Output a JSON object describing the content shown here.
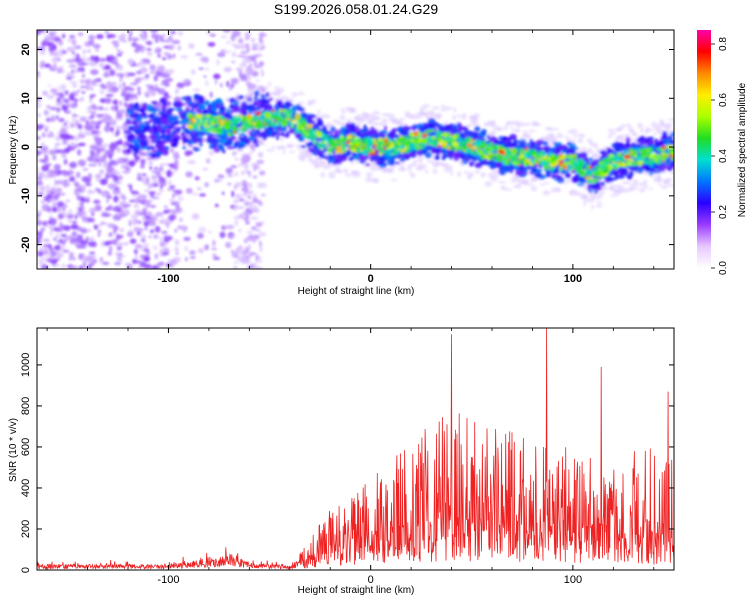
{
  "title": "S199.2026.058.01.24.G29",
  "colors": {
    "snr_line": "#ee2222",
    "axis": "#000000",
    "background": "#ffffff"
  },
  "chart_data": [
    {
      "type": "heatmap",
      "name": "spectrogram",
      "xlabel": "Height of straight line (km)",
      "ylabel": "Frequency (Hz)",
      "xlim": [
        -165,
        150
      ],
      "ylim": [
        -25,
        24
      ],
      "xticks": [
        {
          "value": -100,
          "label": "-100"
        },
        {
          "value": 0,
          "label": "0"
        },
        {
          "value": 100,
          "label": "100"
        }
      ],
      "yticks": [
        {
          "value": 20,
          "label": "20"
        },
        {
          "value": 10,
          "label": "10"
        },
        {
          "value": 0,
          "label": "0"
        },
        {
          "value": -10,
          "label": "-10"
        },
        {
          "value": -20,
          "label": "-20"
        }
      ],
      "colorbar": {
        "label": "Normalized spectral amplitude",
        "range": [
          0.0,
          0.85
        ],
        "ticks": [
          {
            "value": 0.0,
            "label": "0.0"
          },
          {
            "value": 0.2,
            "label": "0.2"
          },
          {
            "value": 0.4,
            "label": "0.4"
          },
          {
            "value": 0.6,
            "label": "0.6"
          },
          {
            "value": 0.8,
            "label": "0.8"
          }
        ],
        "stops": [
          "#ffffff",
          "#e8c8ff",
          "#9a3cff",
          "#2a00ff",
          "#0077ff",
          "#00e0d0",
          "#22dd22",
          "#aaff00",
          "#ffee00",
          "#ff8800",
          "#ff0000",
          "#ff00aa"
        ]
      },
      "ridge": {
        "description": "frequency of peak spectral amplitude versus height",
        "x": [
          -130,
          -100,
          -90,
          -80,
          -70,
          -60,
          -50,
          -40,
          -30,
          -20,
          -10,
          0,
          10,
          20,
          30,
          40,
          50,
          60,
          70,
          80,
          90,
          100,
          110,
          120,
          130,
          140,
          148
        ],
        "y": [
          3,
          4,
          5,
          5,
          4,
          5,
          6,
          6,
          3,
          0,
          1,
          0,
          0,
          1,
          2,
          1,
          0,
          -1,
          -2,
          -2,
          -3,
          -3,
          -6,
          -3,
          -2,
          -2,
          -1
        ]
      }
    },
    {
      "type": "line",
      "name": "snr",
      "xlabel": "Height of straight line (km)",
      "ylabel": "SNR (10 * v/v)",
      "xlim": [
        -165,
        150
      ],
      "ylim": [
        0,
        1180
      ],
      "xticks": [
        {
          "value": -100,
          "label": "-100"
        },
        {
          "value": 0,
          "label": "0"
        },
        {
          "value": 100,
          "label": "100"
        }
      ],
      "yticks": [
        {
          "value": 0,
          "label": "0"
        },
        {
          "value": 200,
          "label": "200"
        },
        {
          "value": 400,
          "label": "400"
        },
        {
          "value": 600,
          "label": "600"
        },
        {
          "value": 800,
          "label": "800"
        },
        {
          "value": 1000,
          "label": "1000"
        }
      ],
      "envelope": {
        "description": "approximate baseline and upper envelope of SNR vs height",
        "x": [
          -165,
          -100,
          -80,
          -70,
          -60,
          -40,
          -30,
          -20,
          0,
          20,
          40,
          60,
          80,
          100,
          120,
          140,
          150
        ],
        "base": [
          20,
          20,
          40,
          60,
          25,
          15,
          60,
          120,
          180,
          220,
          250,
          240,
          220,
          230,
          200,
          180,
          150
        ],
        "peak": [
          40,
          45,
          90,
          110,
          50,
          30,
          150,
          300,
          450,
          650,
          780,
          700,
          650,
          600,
          560,
          600,
          550
        ]
      },
      "spikes": [
        {
          "x": 40,
          "y": 1150
        },
        {
          "x": 87,
          "y": 1180
        },
        {
          "x": 114,
          "y": 990
        },
        {
          "x": 147,
          "y": 870
        }
      ]
    }
  ]
}
